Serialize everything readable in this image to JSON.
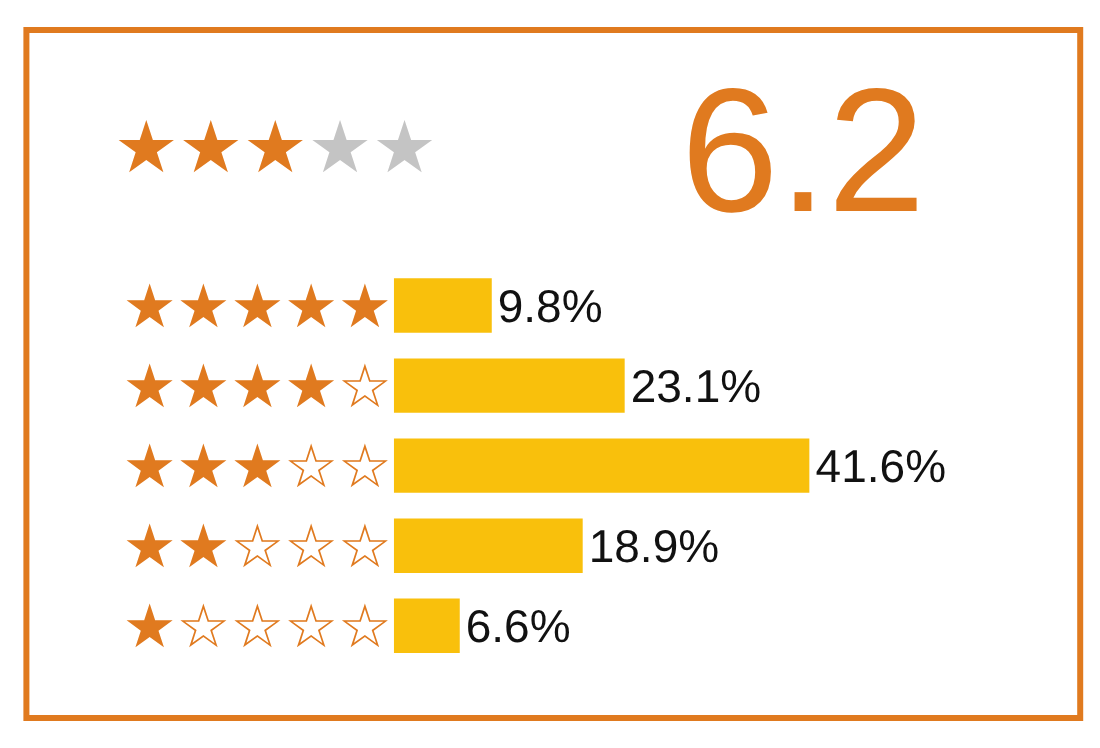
{
  "chart_data": {
    "type": "bar",
    "orientation": "horizontal",
    "title": "6.2",
    "categories": [
      "★★★★★",
      "★★★★☆",
      "★★★☆☆",
      "★★☆☆☆",
      "★☆☆☆☆"
    ],
    "values": [
      9.8,
      23.1,
      41.6,
      18.9,
      6.6
    ],
    "value_labels": [
      "9.8%",
      "23.1%",
      "41.6%",
      "18.9%",
      "6.6%"
    ],
    "color": "#f9c00c",
    "annotations": [
      "★★★",
      "★★"
    ],
    "tick_labels": "y"
  }
}
